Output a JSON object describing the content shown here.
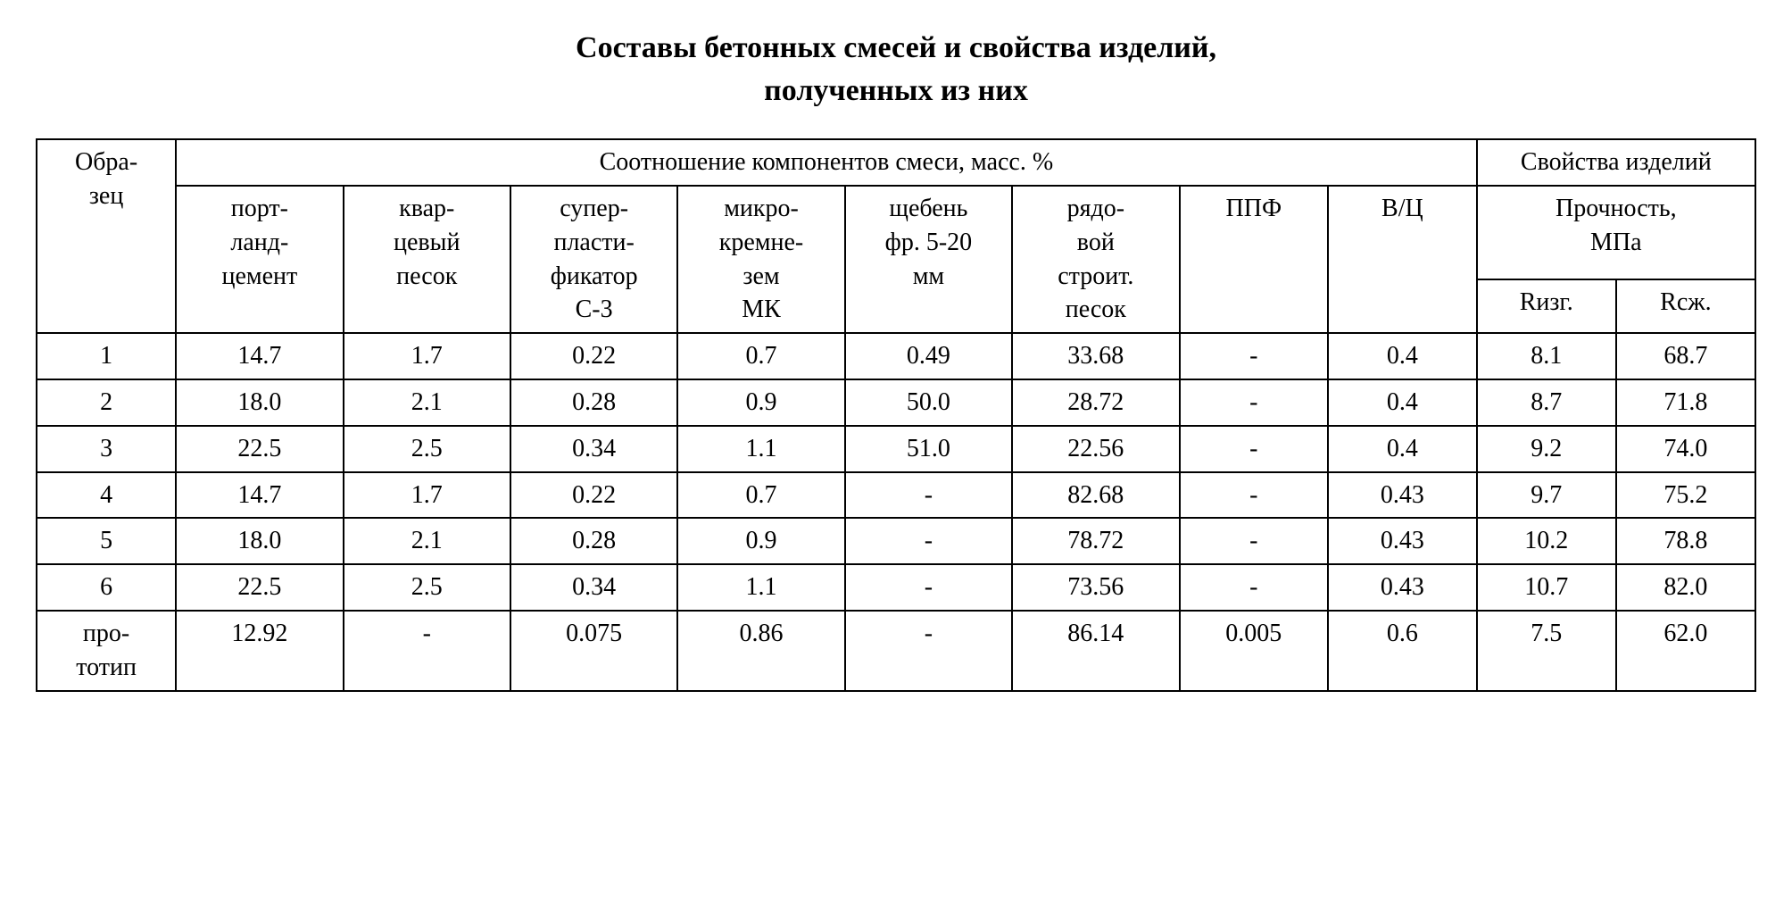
{
  "title_line1": "Составы бетонных смесей и свойства изделий,",
  "title_line2": "полученных из них",
  "headers": {
    "sample": "Обра-\nзец",
    "ratio": "Соотношение компонентов смеси, масс. %",
    "properties": "Свойства изделий",
    "portland": "порт-\nланд-\nцемент",
    "quartz": "квар-\nцевый\nпесок",
    "super": "супер-\nпласти-\nфикатор\nС-3",
    "micro": "микро-\nкремне-\nзем\nМК",
    "gravel": "щебень\nфр. 5-20\nмм",
    "sand": "рядо-\nвой\nстроит.\nпесок",
    "ppf": "ППФ",
    "vc": "В/Ц",
    "strength": "Прочность,\nМПа",
    "rizg": "Rизг.",
    "rcz": "Rсж."
  },
  "rows": [
    {
      "sample": "1",
      "portland": "14.7",
      "quartz": "1.7",
      "super": "0.22",
      "micro": "0.7",
      "gravel": "0.49",
      "sand": "33.68",
      "ppf": "-",
      "vc": "0.4",
      "rizg": "8.1",
      "rcz": "68.7"
    },
    {
      "sample": "2",
      "portland": "18.0",
      "quartz": "2.1",
      "super": "0.28",
      "micro": "0.9",
      "gravel": "50.0",
      "sand": "28.72",
      "ppf": "-",
      "vc": "0.4",
      "rizg": "8.7",
      "rcz": "71.8"
    },
    {
      "sample": "3",
      "portland": "22.5",
      "quartz": "2.5",
      "super": "0.34",
      "micro": "1.1",
      "gravel": "51.0",
      "sand": "22.56",
      "ppf": "-",
      "vc": "0.4",
      "rizg": "9.2",
      "rcz": "74.0"
    },
    {
      "sample": "4",
      "portland": "14.7",
      "quartz": "1.7",
      "super": "0.22",
      "micro": "0.7",
      "gravel": "-",
      "sand": "82.68",
      "ppf": "-",
      "vc": "0.43",
      "rizg": "9.7",
      "rcz": "75.2"
    },
    {
      "sample": "5",
      "portland": "18.0",
      "quartz": "2.1",
      "super": "0.28",
      "micro": "0.9",
      "gravel": "-",
      "sand": "78.72",
      "ppf": "-",
      "vc": "0.43",
      "rizg": "10.2",
      "rcz": "78.8"
    },
    {
      "sample": "6",
      "portland": "22.5",
      "quartz": "2.5",
      "super": "0.34",
      "micro": "1.1",
      "gravel": "-",
      "sand": "73.56",
      "ppf": "-",
      "vc": "0.43",
      "rizg": "10.7",
      "rcz": "82.0"
    },
    {
      "sample": "про-\nтотип",
      "portland": "12.92",
      "quartz": "-",
      "super": "0.075",
      "micro": "0.86",
      "gravel": "-",
      "sand": "86.14",
      "ppf": "0.005",
      "vc": "0.6",
      "rizg": "7.5",
      "rcz": "62.0"
    }
  ]
}
